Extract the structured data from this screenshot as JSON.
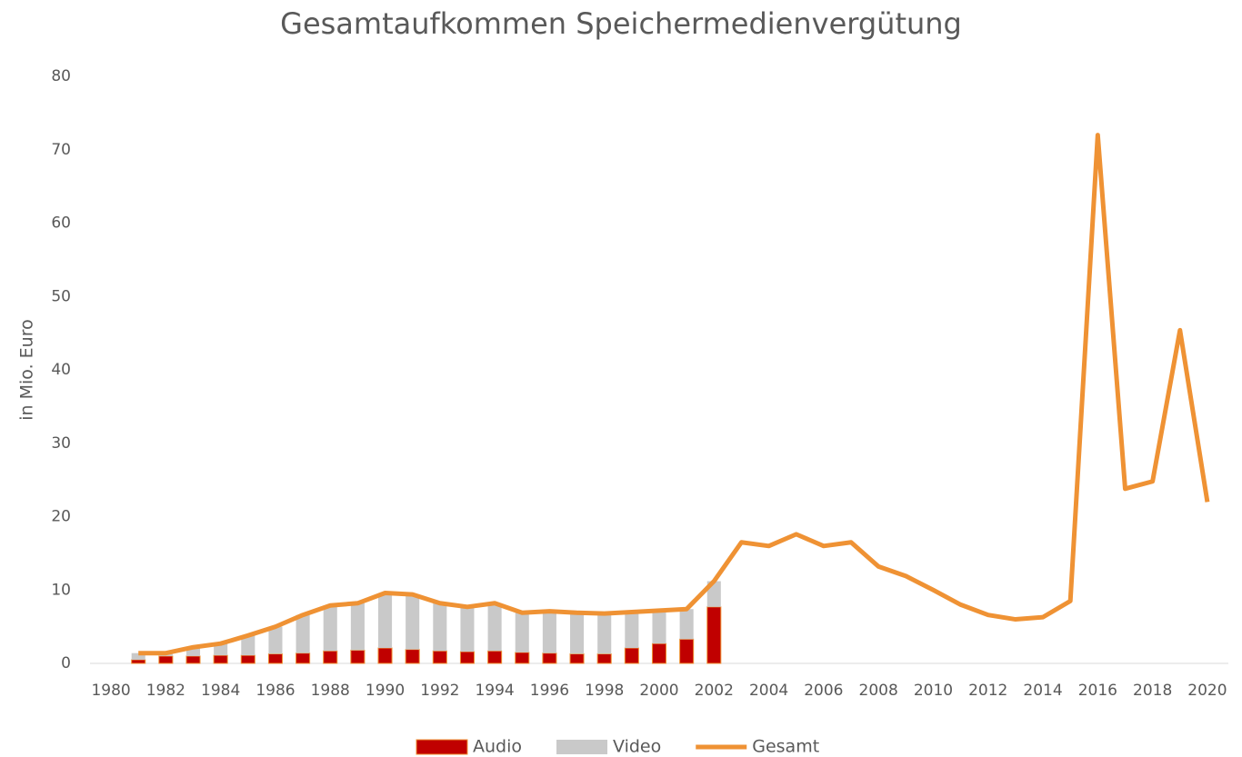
{
  "chart_data": {
    "type": "stacked-bar-line",
    "title": "Gesamtaufkommen Speichermedienvergütung",
    "y_label": "in Mio. Euro",
    "categories": [
      "1980",
      null,
      "1982",
      null,
      "1984",
      null,
      "1986",
      null,
      "1988",
      null,
      "1990",
      null,
      "1992",
      null,
      "1994",
      null,
      "1996",
      null,
      "1998",
      null,
      "2000",
      null,
      "2002",
      null,
      "2004",
      null,
      "2006",
      null,
      "2008",
      null,
      "2010",
      null,
      "2012",
      null,
      "2014",
      null,
      "2016",
      null,
      "2018",
      null,
      "2020"
    ],
    "series": [
      {
        "name": "Audio",
        "type": "bar",
        "color": "#c00000",
        "values": [
          null,
          0.5,
          1.0,
          1.0,
          1.1,
          1.1,
          1.3,
          1.4,
          1.7,
          1.8,
          2.1,
          1.9,
          1.7,
          1.6,
          1.7,
          1.5,
          1.4,
          1.3,
          1.3,
          2.1,
          2.7,
          3.3,
          7.7,
          null,
          null,
          null,
          null,
          null,
          null,
          null,
          null,
          null,
          null,
          null,
          null,
          null,
          null,
          null,
          null,
          null,
          null
        ]
      },
      {
        "name": "Video",
        "type": "bar",
        "color": "#c9c9c9",
        "values": [
          null,
          0.9,
          0.4,
          1.2,
          1.6,
          2.7,
          3.7,
          5.2,
          6.2,
          6.4,
          7.5,
          7.5,
          6.5,
          6.1,
          6.5,
          5.4,
          5.7,
          5.6,
          5.5,
          4.9,
          4.5,
          4.1,
          3.5,
          null,
          null,
          null,
          null,
          null,
          null,
          null,
          null,
          null,
          null,
          null,
          null,
          null,
          null,
          null,
          null,
          null,
          null
        ]
      },
      {
        "name": "Gesamt",
        "type": "line",
        "color": "#ef9234",
        "values": [
          null,
          1.4,
          1.4,
          2.2,
          2.7,
          3.8,
          5.0,
          6.6,
          7.9,
          8.2,
          9.6,
          9.4,
          8.2,
          7.7,
          8.2,
          6.9,
          7.1,
          6.9,
          6.8,
          7.0,
          7.2,
          7.4,
          11.2,
          16.5,
          16.0,
          17.6,
          16.0,
          16.5,
          13.2,
          11.9,
          10.0,
          8.0,
          6.6,
          6.0,
          6.3,
          8.5,
          72.0,
          23.8,
          24.8,
          45.4,
          22.0
        ]
      }
    ],
    "ylim": [
      0,
      80
    ],
    "yticks": [
      0,
      10,
      20,
      30,
      40,
      50,
      60,
      70,
      80
    ],
    "legend": "bottom"
  }
}
